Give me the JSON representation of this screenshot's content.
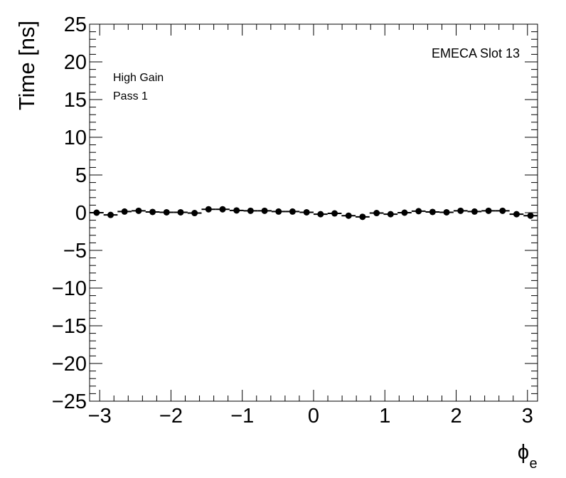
{
  "chart_data": {
    "type": "scatter",
    "xlabel": "ϕ",
    "xlabel_subscript": "e",
    "ylabel": "Time [ns]",
    "xlim": [
      -3.1416,
      3.1416
    ],
    "ylim": [
      -25,
      25
    ],
    "x_ticks": [
      -3,
      -2,
      -1,
      0,
      1,
      2,
      3
    ],
    "x_tick_labels": [
      "−3",
      "−2",
      "−1",
      "0",
      "1",
      "2",
      "3"
    ],
    "y_ticks": [
      -25,
      -20,
      -15,
      -10,
      -5,
      0,
      5,
      10,
      15,
      20,
      25
    ],
    "y_tick_labels": [
      "−25",
      "−20",
      "−15",
      "−10",
      "−5",
      "0",
      "5",
      "10",
      "15",
      "20",
      "25"
    ],
    "annotations": {
      "top_right": "EMECA Slot 13",
      "line1": "High Gain",
      "line2": "Pass 1"
    },
    "grid": false,
    "series": [
      {
        "x": [
          -3.043,
          -2.847,
          -2.651,
          -2.454,
          -2.258,
          -2.062,
          -1.865,
          -1.669,
          -1.473,
          -1.276,
          -1.08,
          -0.884,
          -0.687,
          -0.491,
          -0.295,
          -0.098,
          0.098,
          0.295,
          0.491,
          0.687,
          0.884,
          1.08,
          1.276,
          1.473,
          1.669,
          1.865,
          2.062,
          2.258,
          2.454,
          2.651,
          2.847,
          3.043
        ],
        "y": [
          0.0,
          -0.3,
          0.15,
          0.25,
          0.1,
          0.05,
          0.05,
          -0.05,
          0.45,
          0.45,
          0.3,
          0.25,
          0.25,
          0.15,
          0.15,
          0.05,
          -0.2,
          -0.1,
          -0.4,
          -0.55,
          -0.05,
          -0.2,
          0.0,
          0.2,
          0.1,
          0.05,
          0.25,
          0.15,
          0.25,
          0.25,
          -0.2,
          -0.4
        ],
        "x_err": 0.0982,
        "y_err": 0.1
      }
    ]
  }
}
